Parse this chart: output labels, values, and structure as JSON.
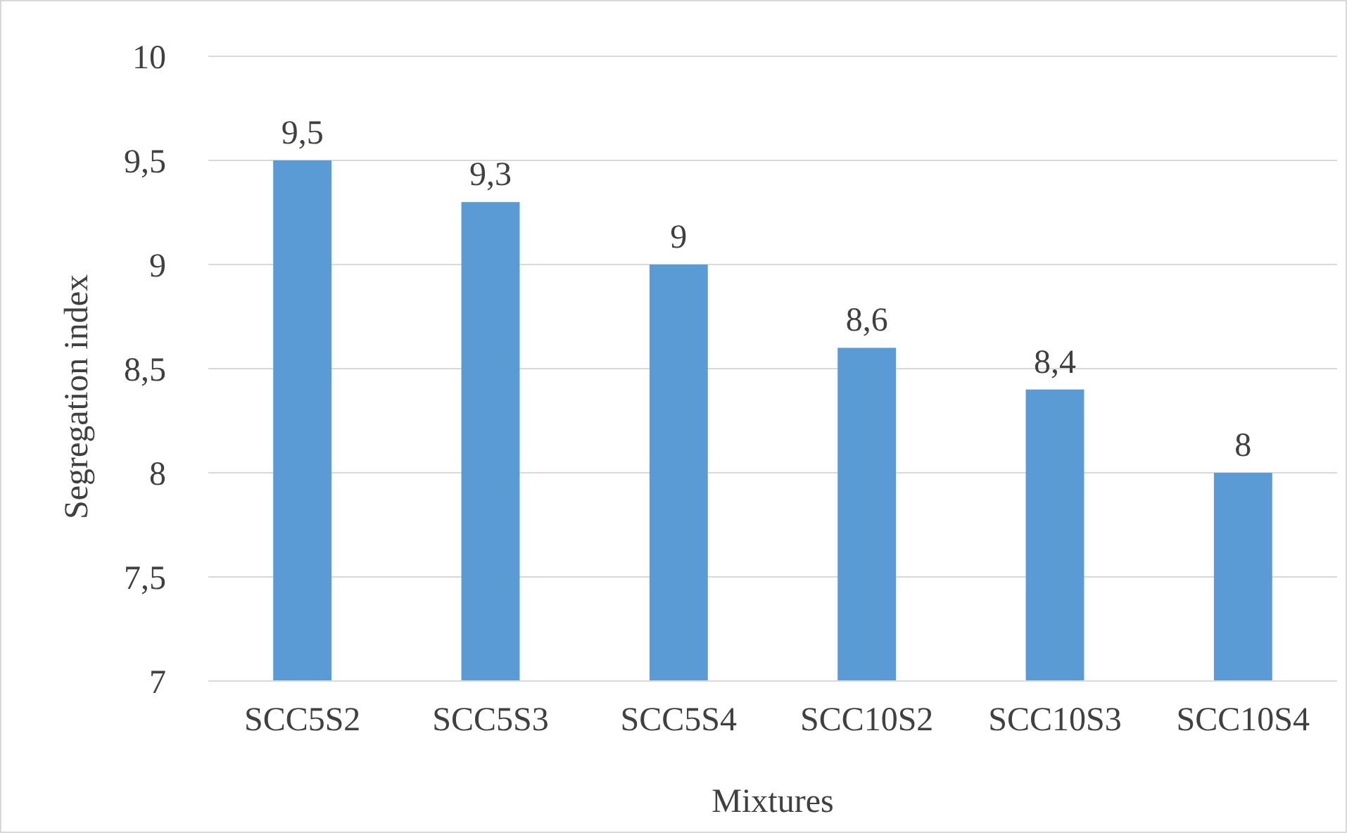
{
  "chart_data": {
    "type": "bar",
    "xlabel": "Mixtures",
    "ylabel": "Segregation index",
    "categories": [
      "SCC5S2",
      "SCC5S3",
      "SCC5S4",
      "SCC10S2",
      "SCC10S3",
      "SCC10S4"
    ],
    "values": [
      9.5,
      9.3,
      9,
      8.6,
      8.4,
      8
    ],
    "value_labels": [
      "9,5",
      "9,3",
      "9",
      "8,6",
      "8,4",
      "8"
    ],
    "color": "#5b9bd5",
    "ylim": [
      7,
      10
    ],
    "yticks": [
      7,
      {
        "value": 7.5,
        "label": "7,5"
      },
      8,
      {
        "value": 8.5,
        "label": "8,5"
      },
      9,
      {
        "value": 9.5,
        "label": "9,5"
      },
      10
    ],
    "grid": "y"
  }
}
